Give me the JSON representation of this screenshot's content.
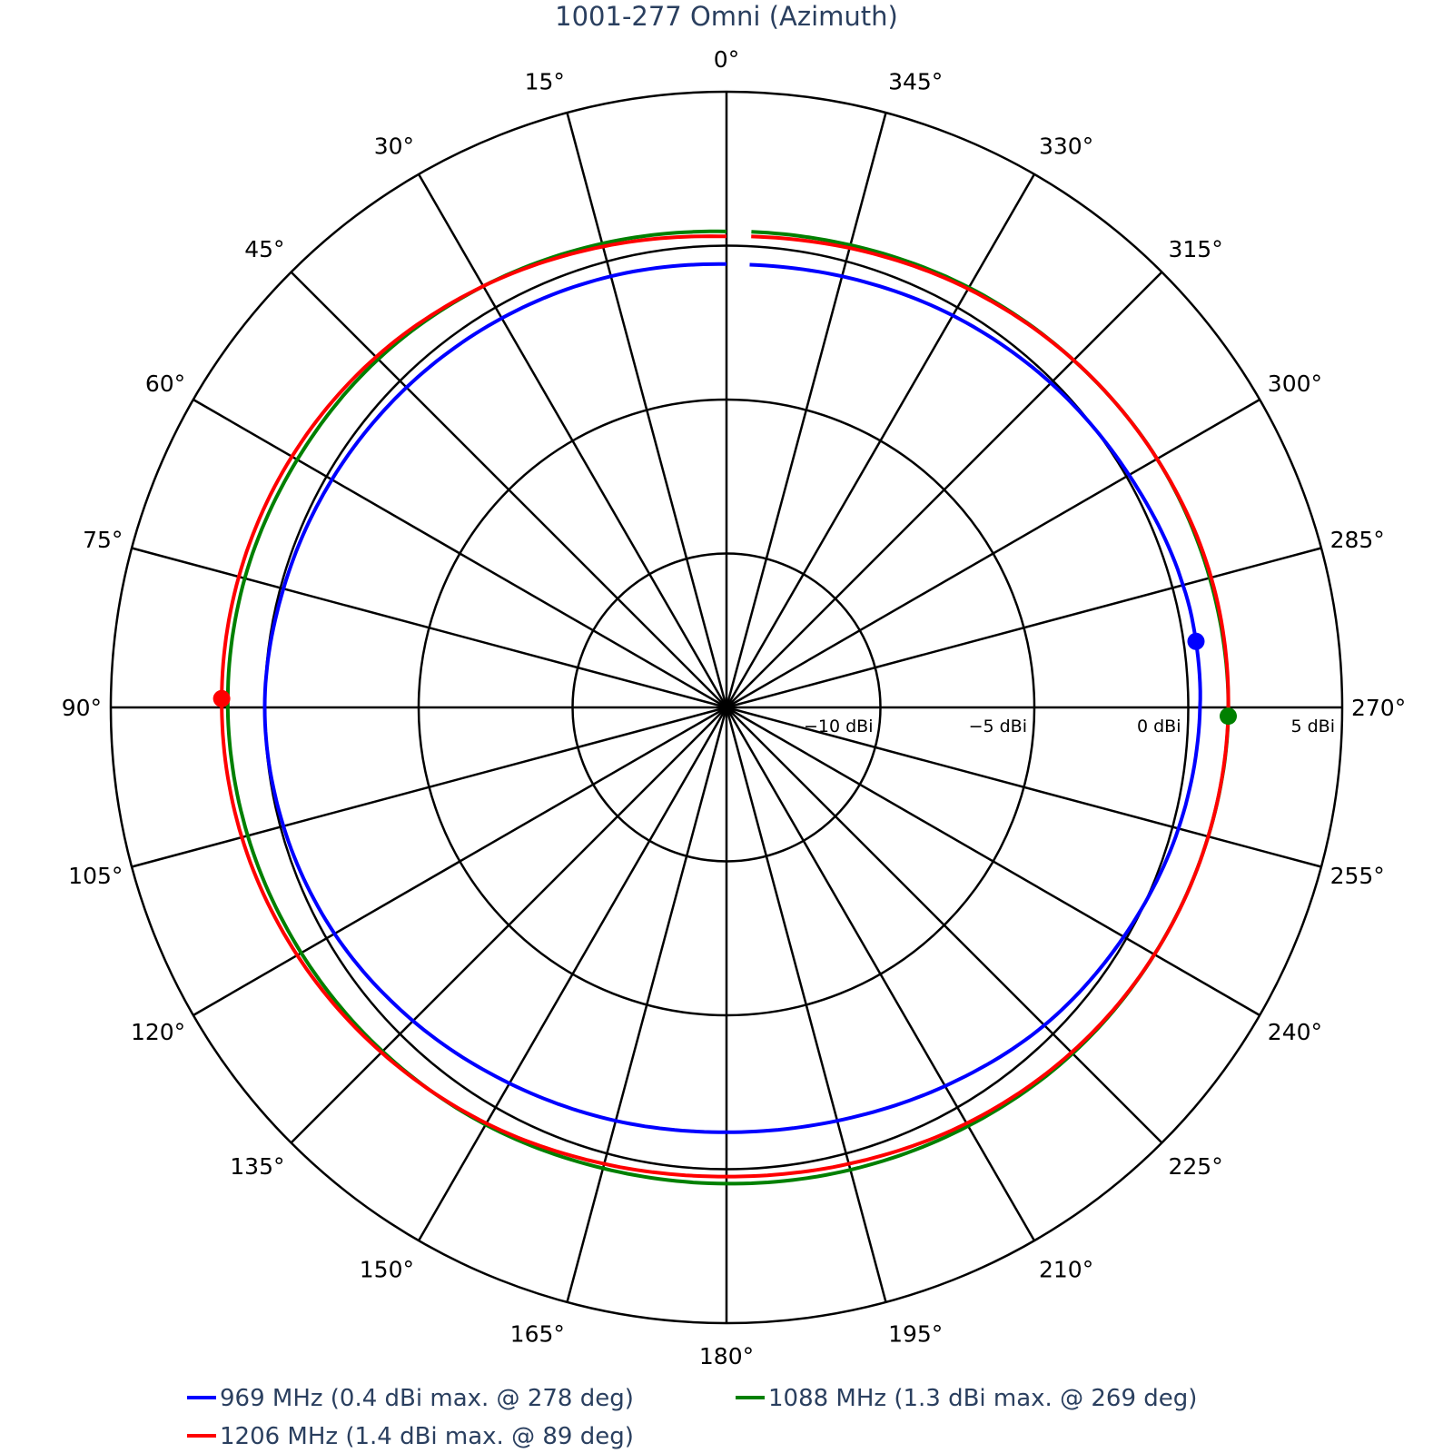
{
  "chart_data": {
    "type": "polar-line",
    "title": "1001-277 Omni (Azimuth)",
    "angular_axis": {
      "direction": "counterclockwise",
      "rotation_zero_at": "top",
      "tick_step_deg": 15,
      "tick_labels": [
        "0°",
        "15°",
        "30°",
        "45°",
        "60°",
        "75°",
        "90°",
        "105°",
        "120°",
        "135°",
        "150°",
        "165°",
        "180°",
        "195°",
        "210°",
        "225°",
        "240°",
        "255°",
        "270°",
        "285°",
        "300°",
        "315°",
        "330°",
        "345°"
      ]
    },
    "radial_axis": {
      "range": [
        -15,
        5
      ],
      "unit": "dBi",
      "ticks": [
        -10,
        -5,
        0,
        5
      ],
      "tick_labels": [
        "−10 dBi",
        "−5 dBi",
        "0 dBi",
        "5 dBi"
      ],
      "tick_angle_deg": 270
    },
    "series": [
      {
        "name": "969 MHz (0.4 dBi max. @ 278 deg)",
        "color": "#0000ff",
        "max": {
          "value": 0.4,
          "angle": 278
        },
        "theta": [
          0,
          15,
          30,
          45,
          60,
          75,
          90,
          105,
          120,
          135,
          150,
          165,
          180,
          195,
          210,
          225,
          240,
          255,
          270,
          278,
          285,
          300,
          315,
          330,
          345,
          357
        ],
        "r": [
          -0.6,
          -0.5,
          -0.4,
          -0.3,
          -0.2,
          -0.1,
          0.0,
          -0.1,
          -0.3,
          -0.6,
          -0.9,
          -1.1,
          -1.2,
          -1.1,
          -0.8,
          -0.4,
          -0.1,
          0.2,
          0.38,
          0.4,
          0.35,
          0.1,
          -0.1,
          -0.3,
          -0.5,
          -0.6
        ]
      },
      {
        "name": "1088 MHz (1.3 dBi max. @ 269 deg)",
        "color": "#008000",
        "max": {
          "value": 1.3,
          "angle": 269
        },
        "theta": [
          0,
          15,
          30,
          45,
          60,
          75,
          90,
          105,
          120,
          135,
          150,
          165,
          180,
          195,
          210,
          225,
          240,
          255,
          269,
          285,
          300,
          315,
          330,
          345,
          357
        ],
        "r": [
          0.46,
          0.6,
          0.8,
          1.0,
          1.1,
          1.2,
          1.2,
          1.1,
          0.95,
          0.8,
          0.65,
          0.5,
          0.47,
          0.55,
          0.7,
          0.9,
          1.05,
          1.2,
          1.3,
          1.25,
          1.15,
          0.95,
          0.75,
          0.55,
          0.47
        ]
      },
      {
        "name": "1206 MHz (1.4 dBi max. @ 89 deg)",
        "color": "#ff0000",
        "max": {
          "value": 1.4,
          "angle": 89
        },
        "theta": [
          0,
          15,
          30,
          45,
          60,
          75,
          89,
          105,
          120,
          135,
          150,
          165,
          180,
          195,
          210,
          225,
          240,
          255,
          270,
          285,
          300,
          315,
          330,
          345,
          357
        ],
        "r": [
          0.3,
          0.5,
          0.8,
          1.1,
          1.3,
          1.4,
          1.4,
          1.3,
          1.1,
          0.85,
          0.6,
          0.35,
          0.24,
          0.35,
          0.6,
          0.85,
          1.05,
          1.2,
          1.3,
          1.3,
          1.15,
          0.95,
          0.7,
          0.45,
          0.32
        ]
      }
    ],
    "legend": {
      "position": "bottom",
      "entries": [
        "969 MHz (0.4 dBi max. @ 278 deg)",
        "1088 MHz (1.3 dBi max. @ 269 deg)",
        "1206 MHz (1.4 dBi max. @ 89 deg)"
      ]
    },
    "grid": true
  }
}
